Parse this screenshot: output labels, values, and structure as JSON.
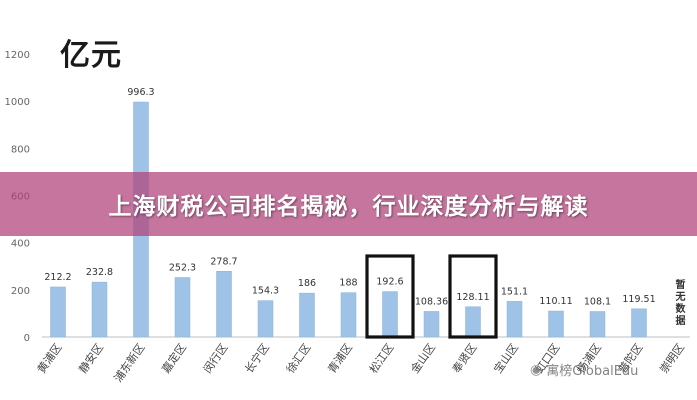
{
  "banner": {
    "title": "上海财税公司排名揭秘，行业深度分析与解读"
  },
  "watermark": {
    "icon": "wechat-icon",
    "text": "寓榜GlobalEdu"
  },
  "chart_data": {
    "type": "bar",
    "title": "亿元",
    "xlabel": "",
    "ylabel": "",
    "ylim": [
      0,
      1200
    ],
    "yticks": [
      0,
      200,
      400,
      600,
      800,
      1000,
      1200
    ],
    "grid": false,
    "bar_color": "#9ec3e6",
    "categories": [
      "黄浦区",
      "静安区",
      "浦东新区",
      "嘉定区",
      "闵行区",
      "长宁区",
      "徐汇区",
      "青浦区",
      "松江区",
      "金山区",
      "奉贤区",
      "宝山区",
      "虹口区",
      "杨浦区",
      "普陀区",
      "崇明区"
    ],
    "values": [
      212.2,
      232.8,
      996.3,
      252.3,
      278.7,
      154.3,
      186,
      188,
      192.6,
      108.36,
      128.11,
      151.1,
      110.11,
      108.1,
      119.51,
      null
    ],
    "value_labels": [
      "212.2",
      "232.8",
      "996.3",
      "252.3",
      "278.7",
      "154.3",
      "186",
      "188",
      "192.6",
      "108.36",
      "128.11",
      "151.1",
      "110.11",
      "108.1",
      "119.51",
      "暂无数据"
    ],
    "highlighted": [
      "松江区",
      "奉贤区"
    ]
  }
}
